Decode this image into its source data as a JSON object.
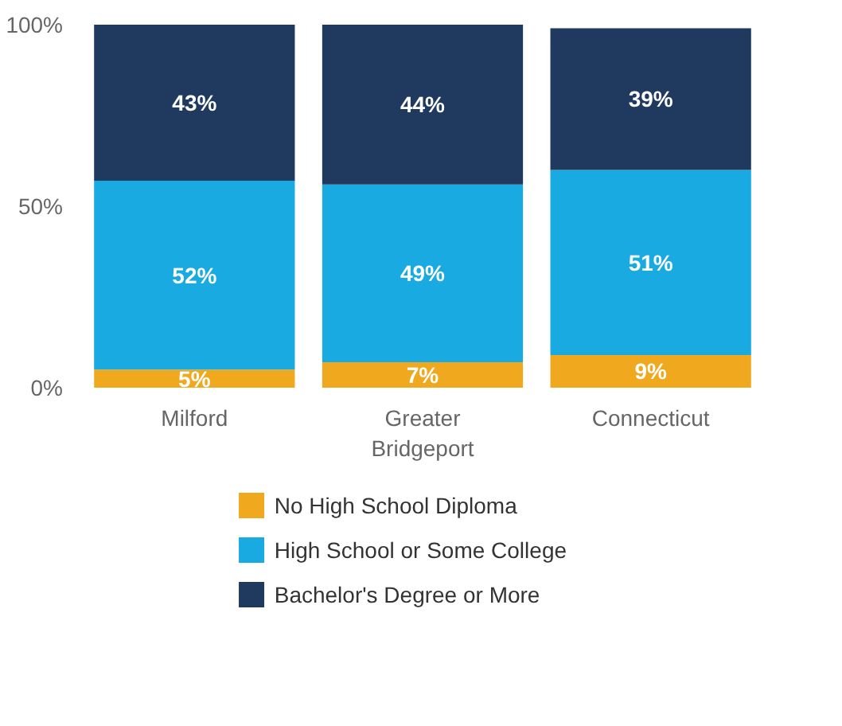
{
  "chart_data": {
    "type": "bar",
    "stacked": true,
    "categories": [
      "Milford",
      "Greater Bridgeport",
      "Connecticut"
    ],
    "series": [
      {
        "name": "No High School Diploma",
        "color": "#f0a91e",
        "values": [
          5,
          7,
          9
        ],
        "value_labels": [
          "5%",
          "7%",
          "9%"
        ]
      },
      {
        "name": "High School or Some College",
        "color": "#19aae2",
        "values": [
          52,
          49,
          51
        ],
        "value_labels": [
          "52%",
          "49%",
          "51%"
        ]
      },
      {
        "name": "Bachelor's Degree or More",
        "color": "#1f3a5e",
        "values": [
          43,
          44,
          39
        ],
        "value_labels": [
          "43%",
          "44%",
          "39%"
        ]
      }
    ],
    "ylim": [
      0,
      100
    ],
    "yticks": [
      {
        "value": 0,
        "label": "0%"
      },
      {
        "value": 50,
        "label": "50%"
      },
      {
        "value": 100,
        "label": "100%"
      }
    ],
    "grid": false,
    "legend": "bottom"
  }
}
